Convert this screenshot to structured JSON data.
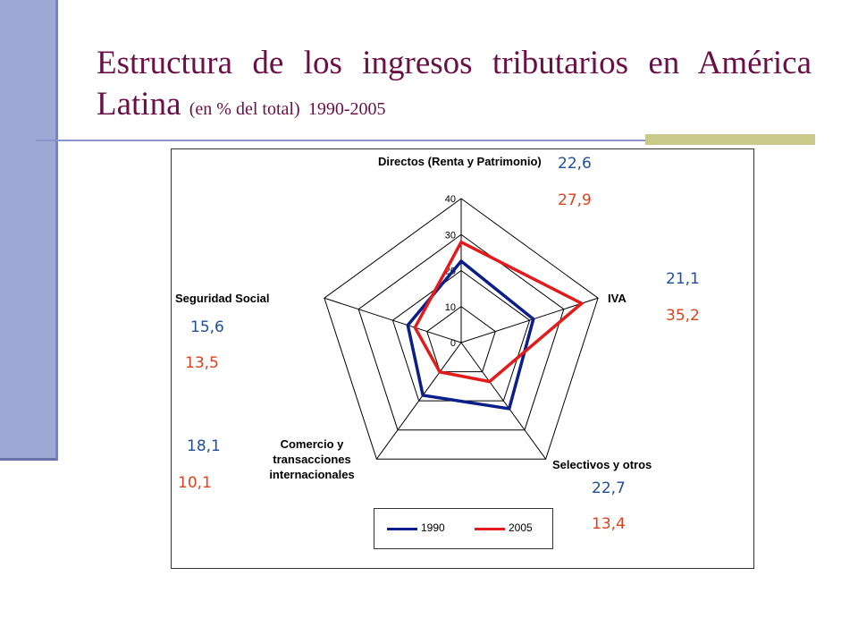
{
  "title": {
    "main": "Estructura de los ingresos tributarios en América Latina",
    "sub": "(en % del total)",
    "years": "1990-2005"
  },
  "chart_data": {
    "type": "radar",
    "axes": [
      "Directos (Renta y Patrimonio)",
      "IVA",
      "Selectivos y otros",
      "Comercio y transacciones internacionales",
      "Seguridad Social"
    ],
    "rlim": [
      0,
      40
    ],
    "ticks": [
      0,
      10,
      20,
      30,
      40
    ],
    "tick_labels": [
      "0",
      "10",
      "20",
      "30",
      "40"
    ],
    "series": [
      {
        "name": "1990",
        "color": "#0b1f8a",
        "values": [
          22.6,
          21.1,
          22.7,
          18.1,
          15.6
        ]
      },
      {
        "name": "2005",
        "color": "#e31b1b",
        "values": [
          27.9,
          35.2,
          13.4,
          10.1,
          13.5
        ]
      }
    ],
    "annotations": {
      "1990": [
        "22,6",
        "21,1",
        "22,7",
        "18,1",
        "15,6"
      ],
      "2005": [
        "27,9",
        "35,2",
        "13,4",
        "10,1",
        "13,5"
      ]
    },
    "legend": "bottom"
  }
}
